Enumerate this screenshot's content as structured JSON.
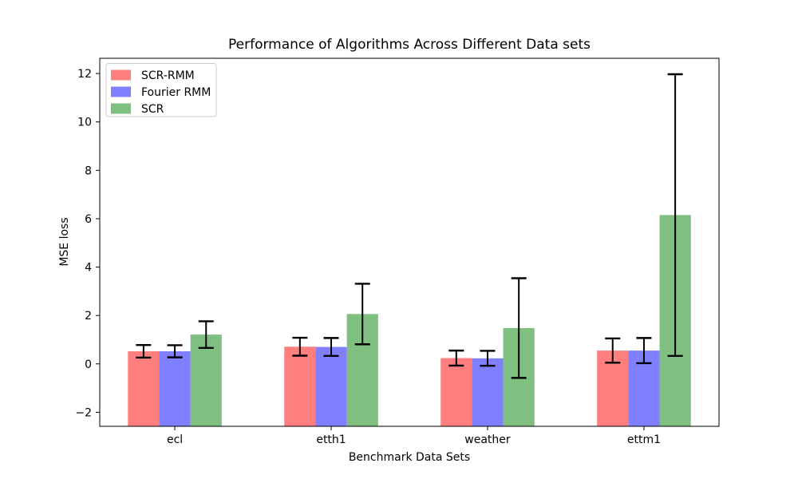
{
  "figure": {
    "title": "Performance of Algorithms Across Different Data sets",
    "xlabel": "Benchmark Data Sets",
    "ylabel": "MSE loss",
    "background_color": "#ffffff",
    "spine_color": "#000000",
    "error_bar_color": "#000000",
    "legend_border_color": "#cccccc"
  },
  "chart_data": {
    "type": "bar",
    "title": "Performance of Algorithms Across Different Data sets",
    "xlabel": "Benchmark Data Sets",
    "ylabel": "MSE loss",
    "categories": [
      "ecl",
      "etth1",
      "weather",
      "ettm1"
    ],
    "series": [
      {
        "name": "SCR-RMM",
        "color": "#ff7f7f",
        "values": [
          0.52,
          0.71,
          0.24,
          0.55
        ],
        "errors": [
          0.26,
          0.37,
          0.31,
          0.5
        ]
      },
      {
        "name": "Fourier RMM",
        "color": "#7f7fff",
        "values": [
          0.52,
          0.7,
          0.23,
          0.55
        ],
        "errors": [
          0.25,
          0.37,
          0.31,
          0.52
        ]
      },
      {
        "name": "SCR",
        "color": "#7fbf7f",
        "values": [
          1.21,
          2.06,
          1.48,
          6.15
        ],
        "errors": [
          0.55,
          1.25,
          2.06,
          5.82
        ]
      }
    ],
    "yticks": [
      -2,
      0,
      2,
      4,
      6,
      8,
      10,
      12
    ],
    "ylim": [
      -2.58,
      12.63
    ],
    "xlim": [
      -0.48,
      3.48
    ],
    "bar_width_units": 0.2,
    "error_capsize_px": 9.5,
    "grid": false,
    "legend_position": "upper left",
    "legend_entries": [
      "SCR-RMM",
      "Fourier RMM",
      "SCR"
    ]
  }
}
